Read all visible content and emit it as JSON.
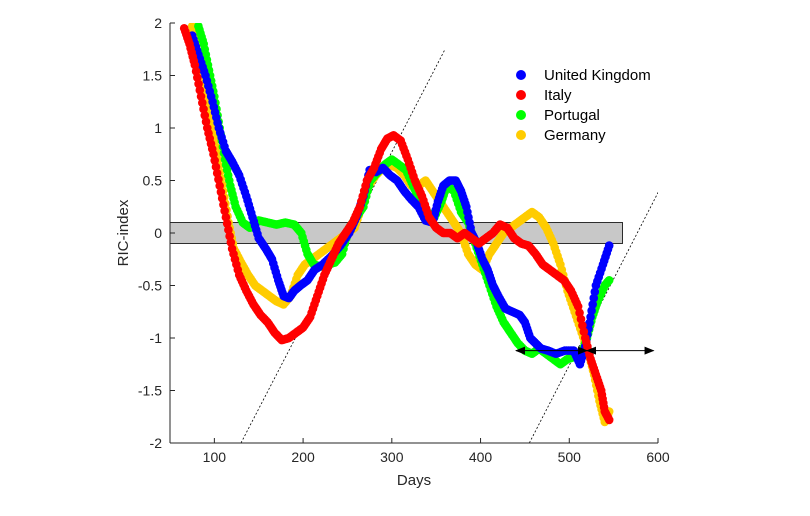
{
  "chart_data": {
    "type": "scatter",
    "title": "",
    "xlabel": "Days",
    "ylabel": "RIC-index",
    "xlim": [
      50,
      600
    ],
    "ylim": [
      -2,
      2
    ],
    "xticks": [
      100,
      200,
      300,
      400,
      500,
      600
    ],
    "yticks": [
      -2,
      -1.5,
      -1,
      -0.5,
      0,
      0.5,
      1,
      1.5,
      2
    ],
    "legend_position": "top-right",
    "grid": false,
    "band": {
      "y_low": -0.1,
      "y_high": 0.1,
      "x_start": 50,
      "x_end": 560,
      "color": "#c8c8c8"
    },
    "reference_lines": [
      {
        "x": [
          130,
          360
        ],
        "y": [
          -2.0,
          1.75
        ],
        "style": "dotted"
      },
      {
        "x": [
          455,
          680
        ],
        "y": [
          -2.0,
          1.7
        ],
        "style": "dotted"
      }
    ],
    "arrows": [
      {
        "from": [
          440,
          -1.12
        ],
        "to": [
          520,
          -1.12
        ]
      },
      {
        "from": [
          520,
          -1.12
        ],
        "to": [
          595,
          -1.12
        ]
      }
    ],
    "series": [
      {
        "name": "United Kingdom",
        "color": "#0000ff",
        "points": [
          [
            75,
            1.88
          ],
          [
            82,
            1.7
          ],
          [
            90,
            1.5
          ],
          [
            98,
            1.25
          ],
          [
            105,
            1.0
          ],
          [
            113,
            0.78
          ],
          [
            120,
            0.68
          ],
          [
            128,
            0.55
          ],
          [
            136,
            0.35
          ],
          [
            143,
            0.15
          ],
          [
            150,
            -0.05
          ],
          [
            158,
            -0.15
          ],
          [
            165,
            -0.25
          ],
          [
            172,
            -0.45
          ],
          [
            178,
            -0.6
          ],
          [
            184,
            -0.62
          ],
          [
            190,
            -0.55
          ],
          [
            197,
            -0.5
          ],
          [
            205,
            -0.45
          ],
          [
            213,
            -0.35
          ],
          [
            222,
            -0.3
          ],
          [
            232,
            -0.22
          ],
          [
            242,
            -0.12
          ],
          [
            252,
            0.0
          ],
          [
            260,
            0.15
          ],
          [
            268,
            0.35
          ],
          [
            275,
            0.6
          ],
          [
            282,
            0.58
          ],
          [
            290,
            0.62
          ],
          [
            298,
            0.55
          ],
          [
            306,
            0.5
          ],
          [
            314,
            0.4
          ],
          [
            322,
            0.32
          ],
          [
            330,
            0.25
          ],
          [
            338,
            0.12
          ],
          [
            346,
            0.1
          ],
          [
            352,
            0.3
          ],
          [
            358,
            0.45
          ],
          [
            365,
            0.5
          ],
          [
            372,
            0.5
          ],
          [
            378,
            0.4
          ],
          [
            384,
            0.25
          ],
          [
            390,
            0.0
          ],
          [
            396,
            -0.1
          ],
          [
            402,
            -0.25
          ],
          [
            408,
            -0.35
          ],
          [
            414,
            -0.5
          ],
          [
            420,
            -0.6
          ],
          [
            428,
            -0.72
          ],
          [
            436,
            -0.75
          ],
          [
            444,
            -0.78
          ],
          [
            450,
            -0.85
          ],
          [
            456,
            -1.0
          ],
          [
            462,
            -1.05
          ],
          [
            468,
            -1.1
          ],
          [
            476,
            -1.12
          ],
          [
            485,
            -1.15
          ],
          [
            495,
            -1.12
          ],
          [
            505,
            -1.12
          ],
          [
            512,
            -1.25
          ],
          [
            518,
            -1.08
          ],
          [
            524,
            -0.8
          ],
          [
            530,
            -0.5
          ],
          [
            538,
            -0.3
          ],
          [
            545,
            -0.12
          ]
        ]
      },
      {
        "name": "Italy",
        "color": "#ff0000",
        "points": [
          [
            66,
            1.95
          ],
          [
            72,
            1.8
          ],
          [
            78,
            1.6
          ],
          [
            85,
            1.3
          ],
          [
            92,
            1.0
          ],
          [
            99,
            0.75
          ],
          [
            106,
            0.45
          ],
          [
            113,
            0.15
          ],
          [
            120,
            -0.15
          ],
          [
            128,
            -0.4
          ],
          [
            136,
            -0.55
          ],
          [
            144,
            -0.68
          ],
          [
            152,
            -0.78
          ],
          [
            160,
            -0.85
          ],
          [
            168,
            -0.95
          ],
          [
            176,
            -1.02
          ],
          [
            184,
            -1.0
          ],
          [
            192,
            -0.95
          ],
          [
            200,
            -0.9
          ],
          [
            208,
            -0.8
          ],
          [
            216,
            -0.6
          ],
          [
            224,
            -0.4
          ],
          [
            232,
            -0.25
          ],
          [
            240,
            -0.1
          ],
          [
            248,
            0.0
          ],
          [
            256,
            0.1
          ],
          [
            264,
            0.25
          ],
          [
            272,
            0.5
          ],
          [
            280,
            0.62
          ],
          [
            288,
            0.8
          ],
          [
            295,
            0.9
          ],
          [
            302,
            0.93
          ],
          [
            310,
            0.88
          ],
          [
            318,
            0.7
          ],
          [
            326,
            0.5
          ],
          [
            334,
            0.35
          ],
          [
            342,
            0.15
          ],
          [
            350,
            0.05
          ],
          [
            358,
            0.0
          ],
          [
            366,
            0.0
          ],
          [
            374,
            -0.05
          ],
          [
            382,
            0.0
          ],
          [
            390,
            -0.05
          ],
          [
            398,
            -0.1
          ],
          [
            406,
            -0.05
          ],
          [
            414,
            0.0
          ],
          [
            422,
            0.08
          ],
          [
            430,
            0.05
          ],
          [
            438,
            -0.05
          ],
          [
            446,
            -0.1
          ],
          [
            454,
            -0.12
          ],
          [
            462,
            -0.2
          ],
          [
            470,
            -0.3
          ],
          [
            478,
            -0.35
          ],
          [
            486,
            -0.4
          ],
          [
            494,
            -0.45
          ],
          [
            502,
            -0.55
          ],
          [
            510,
            -0.7
          ],
          [
            518,
            -1.0
          ],
          [
            524,
            -1.2
          ],
          [
            530,
            -1.35
          ],
          [
            536,
            -1.5
          ],
          [
            540,
            -1.7
          ],
          [
            545,
            -1.78
          ]
        ]
      },
      {
        "name": "Portugal",
        "color": "#00ff00",
        "points": [
          [
            82,
            1.97
          ],
          [
            88,
            1.8
          ],
          [
            94,
            1.55
          ],
          [
            100,
            1.3
          ],
          [
            106,
            1.0
          ],
          [
            112,
            0.7
          ],
          [
            118,
            0.45
          ],
          [
            124,
            0.25
          ],
          [
            132,
            0.1
          ],
          [
            140,
            0.05
          ],
          [
            150,
            0.12
          ],
          [
            160,
            0.1
          ],
          [
            170,
            0.08
          ],
          [
            180,
            0.1
          ],
          [
            190,
            0.08
          ],
          [
            198,
            0.0
          ],
          [
            205,
            -0.2
          ],
          [
            212,
            -0.3
          ],
          [
            220,
            -0.32
          ],
          [
            228,
            -0.3
          ],
          [
            236,
            -0.28
          ],
          [
            244,
            -0.2
          ],
          [
            252,
            0.05
          ],
          [
            260,
            0.15
          ],
          [
            268,
            0.25
          ],
          [
            276,
            0.5
          ],
          [
            284,
            0.58
          ],
          [
            292,
            0.65
          ],
          [
            300,
            0.7
          ],
          [
            308,
            0.65
          ],
          [
            316,
            0.6
          ],
          [
            324,
            0.45
          ],
          [
            332,
            0.3
          ],
          [
            340,
            0.2
          ],
          [
            348,
            0.15
          ],
          [
            356,
            0.3
          ],
          [
            362,
            0.45
          ],
          [
            370,
            0.4
          ],
          [
            378,
            0.2
          ],
          [
            386,
            0.1
          ],
          [
            394,
            -0.1
          ],
          [
            402,
            -0.3
          ],
          [
            410,
            -0.5
          ],
          [
            418,
            -0.7
          ],
          [
            426,
            -0.85
          ],
          [
            434,
            -0.95
          ],
          [
            442,
            -1.05
          ],
          [
            450,
            -1.12
          ],
          [
            458,
            -1.15
          ],
          [
            466,
            -1.1
          ],
          [
            474,
            -1.15
          ],
          [
            482,
            -1.2
          ],
          [
            490,
            -1.25
          ],
          [
            498,
            -1.2
          ],
          [
            506,
            -1.18
          ],
          [
            514,
            -1.15
          ],
          [
            520,
            -1.0
          ],
          [
            526,
            -0.8
          ],
          [
            532,
            -0.65
          ],
          [
            540,
            -0.5
          ],
          [
            545,
            -0.45
          ]
        ]
      },
      {
        "name": "Germany",
        "color": "#ffcc00",
        "points": [
          [
            75,
            1.97
          ],
          [
            80,
            1.75
          ],
          [
            86,
            1.5
          ],
          [
            92,
            1.25
          ],
          [
            98,
            1.0
          ],
          [
            104,
            0.7
          ],
          [
            110,
            0.4
          ],
          [
            116,
            0.1
          ],
          [
            122,
            -0.15
          ],
          [
            130,
            -0.28
          ],
          [
            138,
            -0.4
          ],
          [
            146,
            -0.5
          ],
          [
            154,
            -0.55
          ],
          [
            162,
            -0.6
          ],
          [
            170,
            -0.65
          ],
          [
            178,
            -0.68
          ],
          [
            186,
            -0.6
          ],
          [
            194,
            -0.4
          ],
          [
            202,
            -0.3
          ],
          [
            210,
            -0.25
          ],
          [
            218,
            -0.2
          ],
          [
            226,
            -0.15
          ],
          [
            234,
            -0.1
          ],
          [
            242,
            -0.05
          ],
          [
            250,
            0.0
          ],
          [
            258,
            0.05
          ],
          [
            266,
            0.25
          ],
          [
            274,
            0.45
          ],
          [
            282,
            0.55
          ],
          [
            290,
            0.62
          ],
          [
            298,
            0.65
          ],
          [
            306,
            0.62
          ],
          [
            314,
            0.55
          ],
          [
            322,
            0.45
          ],
          [
            330,
            0.45
          ],
          [
            338,
            0.5
          ],
          [
            346,
            0.4
          ],
          [
            354,
            0.3
          ],
          [
            362,
            0.2
          ],
          [
            370,
            0.1
          ],
          [
            378,
            0.0
          ],
          [
            386,
            -0.2
          ],
          [
            394,
            -0.3
          ],
          [
            402,
            -0.35
          ],
          [
            410,
            -0.2
          ],
          [
            418,
            -0.1
          ],
          [
            426,
            0.0
          ],
          [
            434,
            0.05
          ],
          [
            442,
            0.1
          ],
          [
            450,
            0.15
          ],
          [
            458,
            0.2
          ],
          [
            466,
            0.15
          ],
          [
            474,
            0.05
          ],
          [
            482,
            -0.1
          ],
          [
            490,
            -0.3
          ],
          [
            498,
            -0.55
          ],
          [
            506,
            -0.75
          ],
          [
            514,
            -0.95
          ],
          [
            522,
            -1.15
          ],
          [
            528,
            -1.35
          ],
          [
            534,
            -1.6
          ],
          [
            540,
            -1.8
          ],
          [
            545,
            -1.7
          ]
        ]
      }
    ]
  }
}
